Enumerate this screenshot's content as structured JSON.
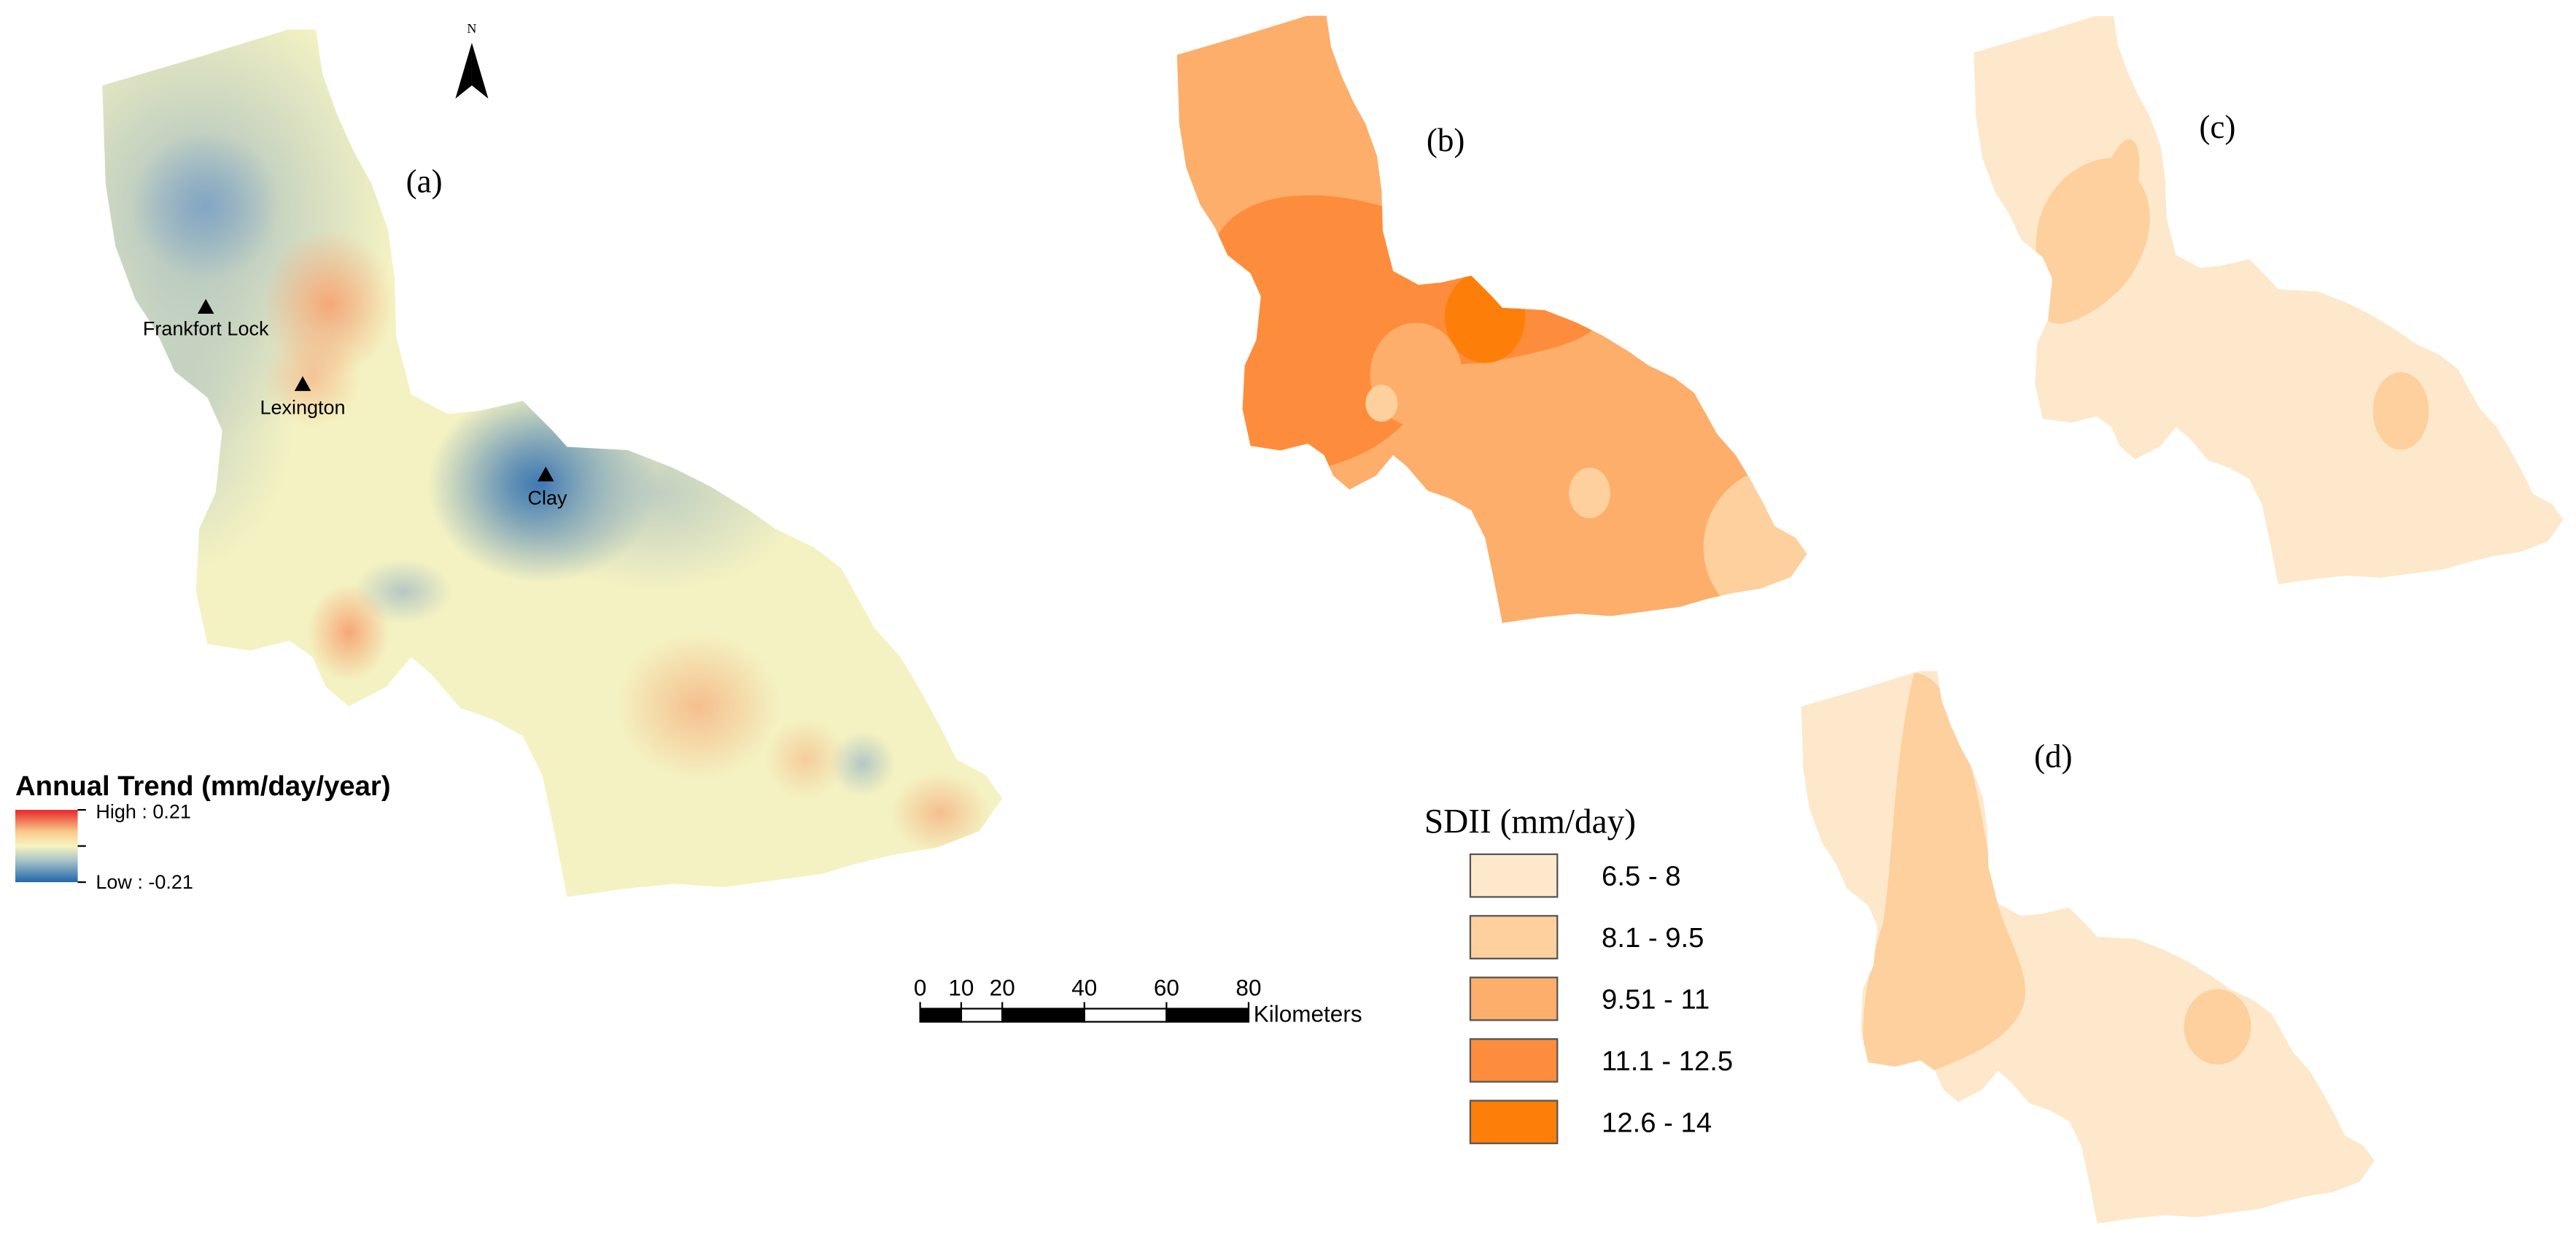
{
  "north_arrow": "N",
  "panel_labels": [
    "(a)",
    "(b)",
    "(c)",
    "(d)"
  ],
  "stations": [
    {
      "name": "Frankfort Lock"
    },
    {
      "name": "Lexington"
    },
    {
      "name": "Clay"
    }
  ],
  "trend_legend": {
    "title": "Annual Trend (mm/day/year)",
    "high": "High : 0.21",
    "low": "Low : -0.21"
  },
  "scale_bar": {
    "ticks": [
      0,
      10,
      20,
      40,
      60,
      80
    ],
    "unit": "Kilometers"
  },
  "sdii_legend": {
    "title": "SDII (mm/day)",
    "classes": [
      {
        "label": "6.5 - 8",
        "color": "#fde8cb"
      },
      {
        "label": "8.1 - 9.5",
        "color": "#fdd09d"
      },
      {
        "label": "9.51 - 11",
        "color": "#fdae6b"
      },
      {
        "label": "11.1 - 12.5",
        "color": "#fd8d3c"
      },
      {
        "label": "12.6 - 14",
        "color": "#fd7f0a"
      }
    ]
  }
}
